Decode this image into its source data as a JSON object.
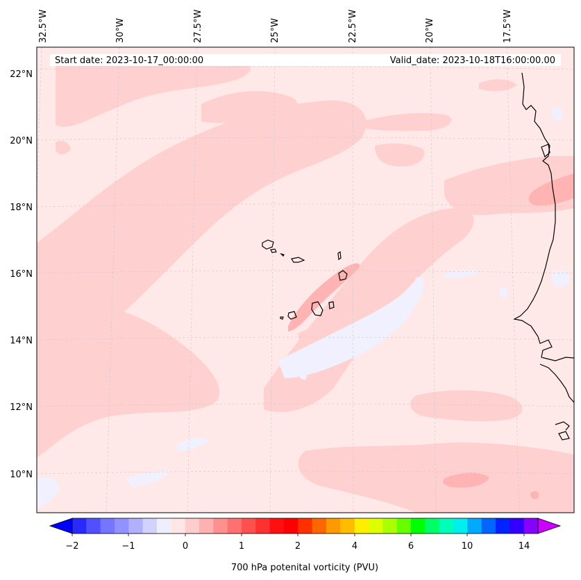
{
  "map": {
    "start_date": "Start date: 2023-10-17_00:00:00",
    "valid_date": "Valid_date: 2023-10-18T16:00:00.00",
    "lon_labels": [
      "32.5°W",
      "30°W",
      "27.5°W",
      "25°W",
      "22.5°W",
      "20°W",
      "17.5°W"
    ],
    "lat_labels": [
      "22°N",
      "20°N",
      "18°N",
      "16°N",
      "14°N",
      "12°N",
      "10°N"
    ],
    "background_color": "#ffe8e8"
  },
  "colorbar": {
    "label": "700 hPa potenital vorticity (PVU)",
    "tick_labels": [
      "−2",
      "−1",
      "0",
      "1",
      "2",
      "4",
      "6",
      "10",
      "14"
    ],
    "colors": [
      "#0000ff",
      "#2a2aff",
      "#5050ff",
      "#7575ff",
      "#9191ff",
      "#b0b0ff",
      "#d2d2ff",
      "#eeeeff",
      "#ffe6e6",
      "#ffcccc",
      "#ffb0b0",
      "#ff9090",
      "#ff7070",
      "#ff5050",
      "#ff3030",
      "#ff1010",
      "#ff0000",
      "#ff3000",
      "#ff6600",
      "#ff9900",
      "#ffbb00",
      "#ffee00",
      "#ddff00",
      "#aaff00",
      "#66ff00",
      "#00ff00",
      "#00ff66",
      "#00ffbb",
      "#00eeee",
      "#00aaff",
      "#0066ff",
      "#0022ff",
      "#3300ff",
      "#8800ff",
      "#cc00ff"
    ]
  }
}
